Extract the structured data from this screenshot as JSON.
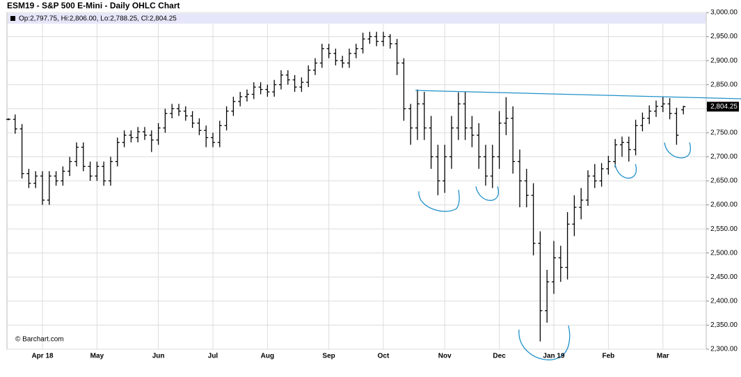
{
  "chart_data": {
    "type": "ohlc",
    "title": "ESM19 - S&P 500 E-Mini - Daily OHLC Chart",
    "info": "Op:2,797.75, Hi:2,806.00, Lo:2,788.25, Cl:2,804.25",
    "credit": "© Barchart.com",
    "color": "#000000",
    "grid": true,
    "categories": [
      null,
      null,
      null,
      null,
      null,
      "Apr 18",
      null,
      null,
      null,
      null,
      null,
      null,
      null,
      "May",
      null,
      null,
      null,
      null,
      null,
      null,
      null,
      null,
      "Jun",
      null,
      null,
      null,
      null,
      null,
      null,
      null,
      "Jul",
      null,
      null,
      null,
      null,
      null,
      null,
      null,
      "Aug",
      null,
      null,
      null,
      null,
      null,
      null,
      null,
      null,
      "Sep",
      null,
      null,
      null,
      null,
      null,
      null,
      null,
      "Oct",
      null,
      null,
      null,
      null,
      null,
      null,
      null,
      null,
      "Nov",
      null,
      null,
      null,
      null,
      null,
      null,
      null,
      "Dec",
      null,
      null,
      null,
      null,
      null,
      null,
      null,
      "Jan 19",
      null,
      null,
      null,
      null,
      null,
      null,
      null,
      "Feb",
      null,
      null,
      null,
      null,
      null,
      null,
      null,
      "Mar",
      null,
      null,
      null
    ],
    "open": [
      2778,
      2778,
      2758,
      2665,
      2645,
      2660,
      2610,
      2660,
      2650,
      2670,
      2690,
      2720,
      2680,
      2660,
      2680,
      2650,
      2690,
      2730,
      2745,
      2740,
      2752,
      2745,
      2735,
      2760,
      2790,
      2800,
      2795,
      2785,
      2770,
      2755,
      2740,
      2730,
      2765,
      2795,
      2815,
      2825,
      2830,
      2845,
      2840,
      2835,
      2850,
      2870,
      2860,
      2845,
      2855,
      2880,
      2895,
      2925,
      2915,
      2900,
      2895,
      2915,
      2925,
      2945,
      2950,
      2940,
      2950,
      2935,
      2895,
      2800,
      2760,
      2810,
      2760,
      2700,
      2650,
      2700,
      2760,
      2810,
      2760,
      2745,
      2700,
      2660,
      2700,
      2770,
      2780,
      2690,
      2650,
      2620,
      2520,
      2380,
      2440,
      2490,
      2470,
      2560,
      2595,
      2610,
      2660,
      2650,
      2675,
      2690,
      2725,
      2730,
      2715,
      2765,
      2780,
      2795,
      2805,
      2810,
      2790,
      2797.75
    ],
    "high": [
      2780,
      2788,
      2768,
      2675,
      2670,
      2670,
      2670,
      2670,
      2680,
      2700,
      2730,
      2730,
      2690,
      2690,
      2690,
      2700,
      2740,
      2755,
      2755,
      2762,
      2762,
      2755,
      2770,
      2800,
      2810,
      2810,
      2805,
      2795,
      2780,
      2765,
      2750,
      2775,
      2805,
      2825,
      2835,
      2840,
      2855,
      2855,
      2850,
      2860,
      2880,
      2880,
      2870,
      2865,
      2890,
      2905,
      2935,
      2935,
      2925,
      2910,
      2925,
      2935,
      2958,
      2960,
      2960,
      2960,
      2955,
      2945,
      2905,
      2810,
      2840,
      2835,
      2785,
      2725,
      2725,
      2785,
      2834,
      2835,
      2785,
      2770,
      2725,
      2725,
      2795,
      2824,
      2805,
      2715,
      2675,
      2645,
      2545,
      2465,
      2525,
      2515,
      2585,
      2620,
      2635,
      2672,
      2685,
      2687,
      2702,
      2737,
      2742,
      2742,
      2777,
      2792,
      2807,
      2817,
      2825,
      2822,
      2802,
      2806
    ],
    "low": [
      2776,
      2748,
      2655,
      2635,
      2635,
      2600,
      2600,
      2640,
      2640,
      2660,
      2680,
      2670,
      2650,
      2650,
      2640,
      2640,
      2680,
      2720,
      2730,
      2730,
      2735,
      2710,
      2725,
      2750,
      2780,
      2785,
      2775,
      2760,
      2745,
      2720,
      2720,
      2720,
      2755,
      2785,
      2805,
      2815,
      2820,
      2830,
      2825,
      2825,
      2840,
      2850,
      2835,
      2835,
      2845,
      2870,
      2885,
      2905,
      2890,
      2885,
      2885,
      2905,
      2915,
      2935,
      2930,
      2930,
      2925,
      2870,
      2775,
      2725,
      2735,
      2735,
      2675,
      2620,
      2625,
      2675,
      2735,
      2735,
      2720,
      2675,
      2640,
      2635,
      2675,
      2745,
      2665,
      2595,
      2595,
      2495,
      2316,
      2355,
      2415,
      2440,
      2445,
      2535,
      2570,
      2598,
      2635,
      2638,
      2663,
      2678,
      2700,
      2690,
      2703,
      2753,
      2768,
      2783,
      2793,
      2778,
      2725,
      2788.25
    ],
    "close": [
      2778,
      2758,
      2665,
      2645,
      2660,
      2610,
      2660,
      2650,
      2670,
      2690,
      2720,
      2680,
      2660,
      2680,
      2650,
      2690,
      2730,
      2745,
      2740,
      2752,
      2745,
      2735,
      2760,
      2790,
      2800,
      2795,
      2785,
      2770,
      2755,
      2740,
      2730,
      2765,
      2795,
      2815,
      2825,
      2830,
      2845,
      2840,
      2835,
      2850,
      2870,
      2860,
      2845,
      2855,
      2880,
      2895,
      2925,
      2915,
      2900,
      2895,
      2915,
      2925,
      2945,
      2950,
      2940,
      2950,
      2935,
      2895,
      2800,
      2760,
      2810,
      2760,
      2700,
      2650,
      2700,
      2760,
      2810,
      2760,
      2745,
      2700,
      2660,
      2700,
      2770,
      2780,
      2690,
      2650,
      2620,
      2520,
      2380,
      2440,
      2490,
      2470,
      2560,
      2595,
      2610,
      2660,
      2650,
      2675,
      2690,
      2725,
      2730,
      2715,
      2765,
      2780,
      2795,
      2805,
      2810,
      2790,
      2745,
      2804.25
    ],
    "last_price": {
      "value": 2804.25,
      "label": "2,804.25"
    },
    "ylim": [
      2300,
      3000
    ],
    "yticks": [
      {
        "value": 2300,
        "label": "2,300.00"
      },
      {
        "value": 2350,
        "label": "2,350.00"
      },
      {
        "value": 2400,
        "label": "2,400.00"
      },
      {
        "value": 2450,
        "label": "2,450.00"
      },
      {
        "value": 2500,
        "label": "2,500.00"
      },
      {
        "value": 2550,
        "label": "2,550.00"
      },
      {
        "value": 2600,
        "label": "2,600.00"
      },
      {
        "value": 2650,
        "label": "2,650.00"
      },
      {
        "value": 2700,
        "label": "2,700.00"
      },
      {
        "value": 2750,
        "label": "2,750.00"
      },
      {
        "value": 2800,
        "label": "2,800.00"
      },
      {
        "value": 2850,
        "label": "2,850.00"
      },
      {
        "value": 2900,
        "label": "2,900.00"
      },
      {
        "value": 2950,
        "label": "2,950.00"
      },
      {
        "value": 3000,
        "label": "3,000.00"
      }
    ]
  }
}
